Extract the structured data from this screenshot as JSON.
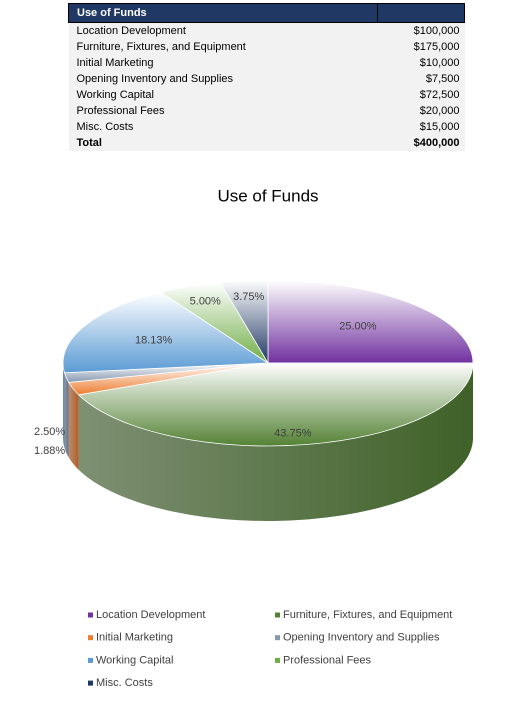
{
  "table": {
    "header": {
      "title": "Use of Funds"
    },
    "rows": [
      [
        "Location Development",
        "$100,000"
      ],
      [
        "Furniture, Fixtures, and Equipment",
        "$175,000"
      ],
      [
        "Initial Marketing",
        "$10,000"
      ],
      [
        "Opening Inventory and Supplies",
        "$7,500"
      ],
      [
        "Working Capital",
        "$72,500"
      ],
      [
        "Professional Fees",
        "$20,000"
      ],
      [
        "Misc. Costs",
        "$15,000"
      ]
    ],
    "total": [
      "Total",
      "$400,000"
    ]
  },
  "chart_data": {
    "type": "pie",
    "title": "Use of Funds",
    "categories": [
      "Location Development",
      "Furniture, Fixtures, and Equipment",
      "Initial Marketing",
      "Opening Inventory and Supplies",
      "Working Capital",
      "Professional Fees",
      "Misc. Costs"
    ],
    "values": [
      25,
      43.75,
      2.5,
      1.88,
      18.13,
      5,
      3.75
    ],
    "value_labels": [
      "25.00%",
      "43.75%",
      "2.50%",
      "1.88%",
      "18.13%",
      "5.00%",
      "3.75%"
    ],
    "colors": [
      "#7030a0",
      "#548235",
      "#ed7d31",
      "#8497b0",
      "#5b9bd5",
      "#70ad47",
      "#203864"
    ],
    "legend": "bottom"
  }
}
